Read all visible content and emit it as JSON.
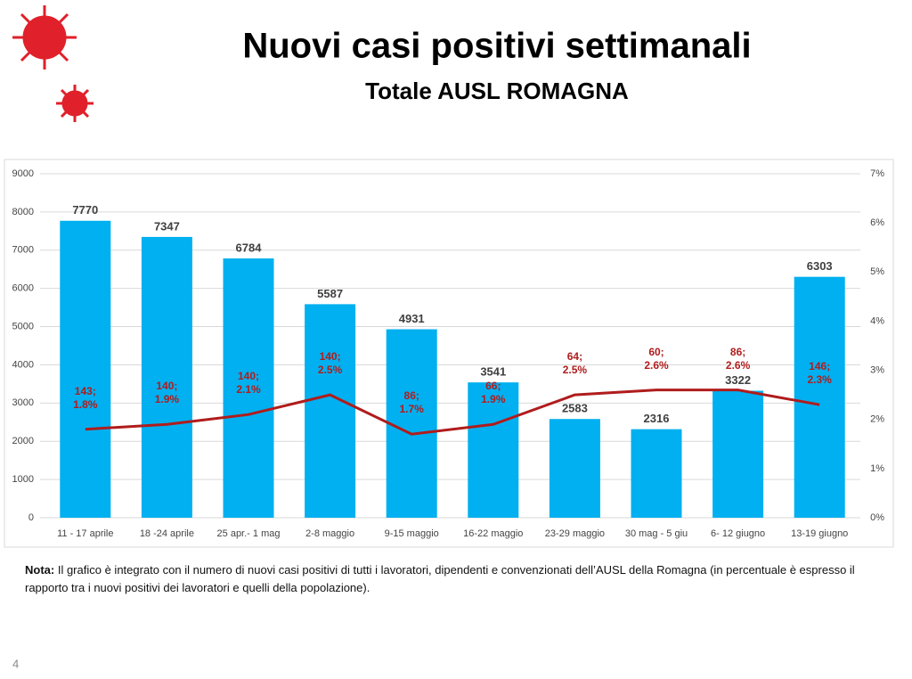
{
  "title": "Nuovi casi positivi settimanali",
  "subtitle": "Totale AUSL ROMAGNA",
  "chart_data": {
    "type": "bar",
    "categories": [
      "11 - 17 aprile",
      "18 -24 aprile",
      "25 apr.- 1 mag",
      "2-8 maggio",
      "9-15 maggio",
      "16-22 maggio",
      "23-29 maggio",
      "30 mag - 5 giu",
      "6- 12 giugno",
      "13-19 giugno"
    ],
    "series": [
      {
        "type": "bar",
        "color": "#00b0f0",
        "values": [
          7770,
          7347,
          6784,
          5587,
          4931,
          3541,
          2583,
          2316,
          3322,
          6303
        ]
      },
      {
        "type": "line",
        "axis": "y2",
        "color": "#b01c1c",
        "values": [
          1.8,
          1.9,
          2.1,
          2.5,
          1.7,
          1.9,
          2.5,
          2.6,
          2.6,
          2.3
        ],
        "value_labels": [
          "143;\n1.8%",
          "140;\n1.9%",
          "140;\n2.1%",
          "140;\n2.5%",
          "86;\n1.7%",
          "66;\n1.9%",
          "64;\n2.5%",
          "60;\n2.6%",
          "86;\n2.6%",
          "146;\n2.3%"
        ]
      }
    ],
    "ylim": [
      0,
      9000
    ],
    "yticks": [
      0,
      1000,
      2000,
      3000,
      4000,
      5000,
      6000,
      7000,
      8000,
      9000
    ],
    "y2lim": [
      0,
      7
    ],
    "y2ticks": [
      {
        "value": 0,
        "label": "0%"
      },
      {
        "value": 1,
        "label": "1%"
      },
      {
        "value": 2,
        "label": "2%"
      },
      {
        "value": 3,
        "label": "3%"
      },
      {
        "value": 4,
        "label": "4%"
      },
      {
        "value": 5,
        "label": "5%"
      },
      {
        "value": 6,
        "label": "6%"
      },
      {
        "value": 7,
        "label": "7%"
      }
    ],
    "grid": true
  },
  "note": {
    "label": "Nota:",
    "text": "Il grafico è integrato con il numero di nuovi casi positivi di tutti i lavoratori, dipendenti e convenzionati dell’AUSL della Romagna (in percentuale è espresso il rapporto tra i nuovi positivi dei lavoratori e quelli della popolazione)."
  },
  "page_number": "4"
}
